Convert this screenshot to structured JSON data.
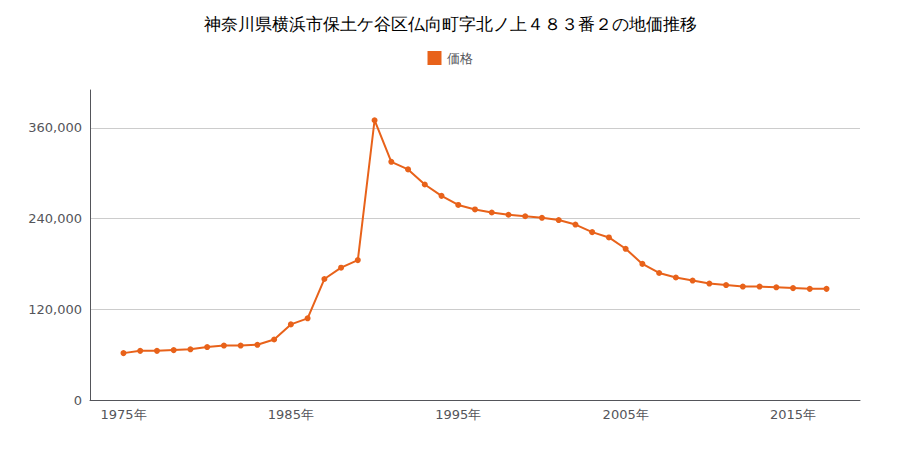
{
  "chart_data": {
    "type": "line",
    "title": "神奈川県横浜市保土ケ谷区仏向町字北ノ上４８３番２の地価推移",
    "x": [
      1975,
      1976,
      1977,
      1978,
      1979,
      1980,
      1981,
      1982,
      1983,
      1984,
      1985,
      1986,
      1987,
      1988,
      1989,
      1990,
      1991,
      1992,
      1993,
      1994,
      1995,
      1996,
      1997,
      1998,
      1999,
      2000,
      2001,
      2002,
      2003,
      2004,
      2005,
      2006,
      2007,
      2008,
      2009,
      2010,
      2011,
      2012,
      2013,
      2014,
      2015,
      2016,
      2017
    ],
    "series": [
      {
        "name": "価格",
        "color": "#e8621a",
        "marker": "circle",
        "values": [
          62000,
          65000,
          65000,
          66000,
          67000,
          70000,
          72000,
          72000,
          73000,
          80000,
          100000,
          108000,
          160000,
          175000,
          185000,
          370000,
          315000,
          305000,
          285000,
          270000,
          258000,
          252000,
          248000,
          245000,
          243000,
          241000,
          238000,
          232000,
          222000,
          215000,
          200000,
          180000,
          168000,
          162000,
          158000,
          154000,
          152000,
          150000,
          150000,
          149000,
          148000,
          147000,
          147000
        ]
      }
    ],
    "xlim": [
      1973,
      2019
    ],
    "xticks": [
      {
        "value": 1975,
        "label": "1975年"
      },
      {
        "value": 1985,
        "label": "1985年"
      },
      {
        "value": 1995,
        "label": "1995年"
      },
      {
        "value": 2005,
        "label": "2005年"
      },
      {
        "value": 2015,
        "label": "2015年"
      }
    ],
    "ylim": [
      0,
      410000
    ],
    "yticks": [
      0,
      {
        "value": 120000,
        "label": "120,000"
      },
      {
        "value": 240000,
        "label": "240,000"
      },
      {
        "value": 360000,
        "label": "360,000"
      }
    ],
    "grid": "y",
    "legend": "top"
  }
}
